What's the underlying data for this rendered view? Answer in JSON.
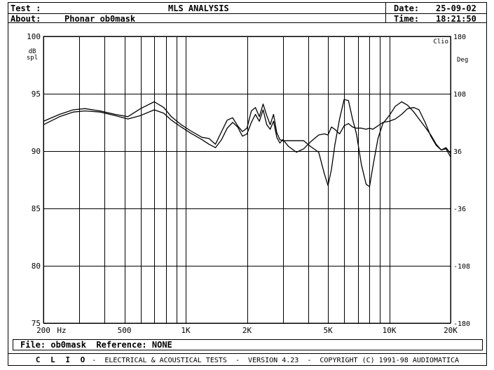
{
  "header": {
    "test_label": "Test :",
    "title": "MLS ANALYSIS",
    "date_label": "Date:",
    "date": "25-09-02",
    "about_label": "About:",
    "about": "Phonar ob0mask",
    "time_label": "Time:",
    "time": "18:21:50"
  },
  "footer": {
    "file_label": "File:",
    "file": "ob0mask",
    "reference_label": "Reference:",
    "reference": "NONE",
    "brand": "C L I O",
    "credits": " -  ELECTRICAL & ACOUSTICAL TESTS  -  VERSION 4.23  -  COPYRIGHT (C) 1991-98 AUDIOMATICA"
  },
  "chart_data": {
    "type": "line",
    "x_scale": "log",
    "xlim": [
      200,
      20000
    ],
    "ylim": [
      75,
      100
    ],
    "y2lim": [
      -180,
      180
    ],
    "ylabel": "dB spl",
    "y2label": "Deg",
    "corner_label": "Clio",
    "x_unit_label": "Hz",
    "x_tick_labels": [
      {
        "value": 200,
        "label": "200"
      },
      {
        "value": 500,
        "label": "500"
      },
      {
        "value": 1000,
        "label": "1K"
      },
      {
        "value": 2000,
        "label": "2K"
      },
      {
        "value": 5000,
        "label": "5K"
      },
      {
        "value": 10000,
        "label": "10K"
      },
      {
        "value": 20000,
        "label": "20K"
      }
    ],
    "x_gridlines": [
      200,
      300,
      400,
      500,
      600,
      700,
      800,
      900,
      1000,
      2000,
      3000,
      4000,
      5000,
      6000,
      7000,
      8000,
      9000,
      10000,
      20000
    ],
    "y_ticks": [
      75,
      80,
      85,
      90,
      95,
      100
    ],
    "y2_ticks": [
      -180,
      -108,
      -36,
      36,
      108,
      180
    ],
    "grid": true,
    "series": [
      {
        "x": [
          200,
          240,
          280,
          320,
          380,
          450,
          520,
          600,
          700,
          780,
          850,
          950,
          1050,
          1200,
          1300,
          1400,
          1500,
          1600,
          1700,
          1800,
          1900,
          2000,
          2100,
          2200,
          2300,
          2400,
          2500,
          2600,
          2700,
          2800,
          2900,
          3000,
          3200,
          3500,
          3800,
          4100,
          4500,
          4800,
          5000,
          5200,
          5400,
          5700,
          6000,
          6300,
          6600,
          6900,
          7300,
          7700,
          8000,
          8300,
          8800,
          9300,
          10000,
          10700,
          11500,
          12300,
          13200,
          14000,
          15000,
          16000,
          17000,
          18000,
          19000,
          20000
        ],
        "y": [
          92.3,
          93.0,
          93.4,
          93.5,
          93.4,
          93.1,
          92.8,
          93.1,
          93.6,
          93.3,
          92.7,
          92.1,
          91.6,
          91.0,
          90.6,
          90.3,
          91.0,
          92.0,
          92.5,
          92.1,
          91.3,
          91.5,
          92.5,
          93.2,
          92.6,
          93.6,
          92.3,
          91.9,
          92.6,
          91.2,
          90.7,
          91.0,
          90.4,
          89.9,
          90.2,
          90.8,
          91.4,
          91.5,
          91.4,
          92.1,
          91.9,
          91.5,
          92.2,
          92.4,
          92.1,
          92.0,
          92.0,
          91.9,
          92.0,
          91.9,
          92.2,
          92.5,
          92.6,
          92.8,
          93.2,
          93.7,
          93.8,
          93.6,
          92.5,
          91.3,
          90.5,
          90.1,
          90.3,
          89.8
        ]
      },
      {
        "x": [
          200,
          240,
          280,
          320,
          380,
          450,
          520,
          600,
          700,
          780,
          850,
          950,
          1050,
          1200,
          1300,
          1400,
          1500,
          1600,
          1700,
          1800,
          1900,
          2000,
          2100,
          2200,
          2300,
          2400,
          2500,
          2600,
          2700,
          2800,
          2900,
          3000,
          3200,
          3500,
          3800,
          4100,
          4500,
          4800,
          5000,
          5200,
          5400,
          5700,
          6000,
          6300,
          6600,
          6900,
          7300,
          7700,
          8000,
          8300,
          8800,
          9300,
          10000,
          10700,
          11500,
          12300,
          13200,
          14000,
          15000,
          16000,
          17000,
          18000,
          19000,
          20000
        ],
        "y": [
          92.6,
          93.2,
          93.6,
          93.7,
          93.5,
          93.2,
          93.0,
          93.7,
          94.3,
          93.8,
          93.0,
          92.3,
          91.8,
          91.2,
          91.1,
          90.6,
          91.7,
          92.7,
          92.9,
          92.2,
          91.7,
          92.0,
          93.5,
          93.8,
          93.0,
          94.1,
          93.1,
          92.3,
          93.2,
          91.6,
          91.0,
          90.9,
          90.9,
          90.9,
          90.9,
          90.4,
          89.9,
          88.0,
          87.0,
          88.4,
          90.5,
          92.8,
          94.5,
          94.4,
          92.8,
          91.5,
          88.8,
          87.1,
          86.9,
          88.6,
          91.1,
          92.4,
          93.1,
          93.9,
          94.3,
          94.0,
          93.4,
          92.8,
          92.1,
          91.4,
          90.6,
          90.1,
          90.2,
          89.5
        ]
      }
    ]
  }
}
